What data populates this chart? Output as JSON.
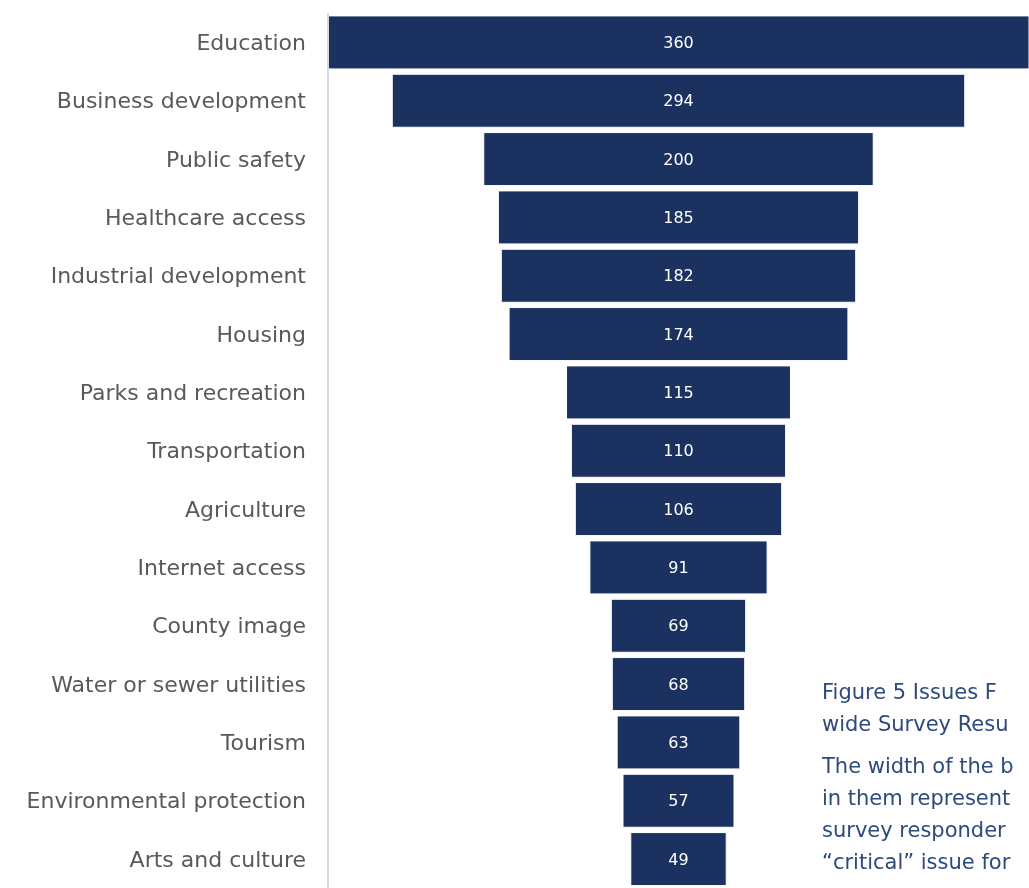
{
  "chart_data": {
    "type": "other",
    "categories": [
      "Education",
      "Business development",
      "Public safety",
      "Healthcare access",
      "Industrial development",
      "Housing",
      "Parks and recreation",
      "Transportation",
      "Agriculture",
      "Internet access",
      "County image",
      "Water or sewer utilities",
      "Tourism",
      "Environmental protection",
      "Arts and culture"
    ],
    "values": [
      360,
      294,
      200,
      185,
      182,
      174,
      115,
      110,
      106,
      91,
      69,
      68,
      63,
      57,
      49
    ],
    "color": "#1b3160",
    "data_labels": true,
    "annotations": [
      "Figure 5 Issues F\nwide Survey Resu",
      "The width of the b\nin them represent\nsurvey responder\n“critical” issue for"
    ]
  }
}
